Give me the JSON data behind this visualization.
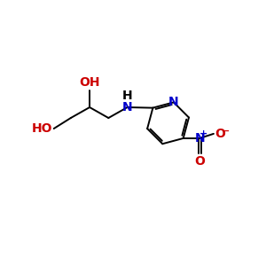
{
  "background": "#ffffff",
  "bond_color": "#000000",
  "nitrogen_color": "#0000cc",
  "oxygen_color": "#cc0000",
  "font_size": 10,
  "lw": 1.4,
  "xlim": [
    0,
    10
  ],
  "ylim": [
    0,
    10
  ]
}
